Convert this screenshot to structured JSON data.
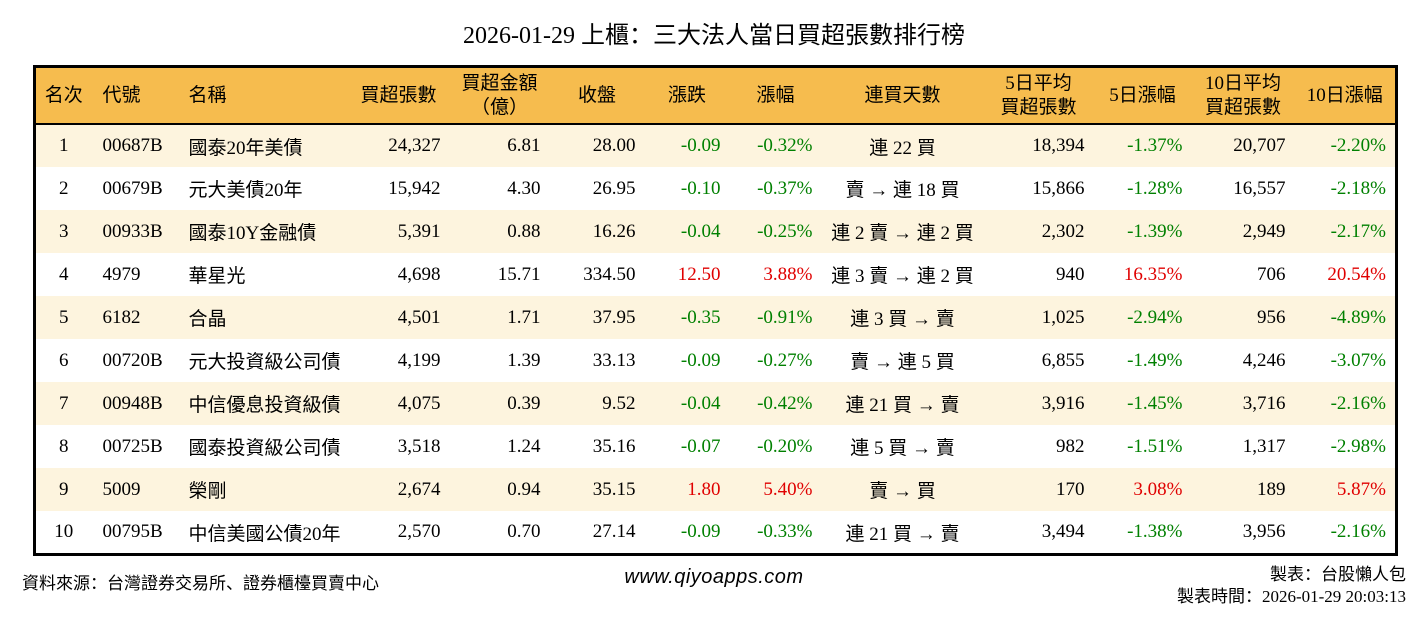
{
  "title": "2026-01-29 上櫃：三大法人當日買超張數排行榜",
  "colors": {
    "header_bg": "#F6BC4E",
    "row_alt_bg": "#FDF4DE",
    "up_red": "#E00000",
    "down_green": "#008000"
  },
  "chart_data": {
    "type": "table",
    "columns": [
      {
        "key": "rank",
        "label": "名次"
      },
      {
        "key": "code",
        "label": "代號"
      },
      {
        "key": "name",
        "label": "名稱"
      },
      {
        "key": "net_buy_lots",
        "label": "買超張數"
      },
      {
        "key": "net_buy_amount_100m",
        "label": "買超金額\n（億）"
      },
      {
        "key": "close",
        "label": "收盤"
      },
      {
        "key": "change",
        "label": "漲跌",
        "signed": true
      },
      {
        "key": "change_pct",
        "label": "漲幅",
        "signed": true
      },
      {
        "key": "streak",
        "label": "連買天數"
      },
      {
        "key": "avg5_net_buy",
        "label": "5日平均\n買超張數"
      },
      {
        "key": "pct5",
        "label": "5日漲幅",
        "signed": true
      },
      {
        "key": "avg10_net_buy",
        "label": "10日平均\n買超張數"
      },
      {
        "key": "pct10",
        "label": "10日漲幅",
        "signed": true
      }
    ],
    "rows": [
      {
        "rank": "1",
        "code": "00687B",
        "name": "國泰20年美債",
        "net_buy_lots": "24,327",
        "net_buy_amount_100m": "6.81",
        "close": "28.00",
        "change": "-0.09",
        "change_pct": "-0.32%",
        "streak": "連 22 買",
        "avg5_net_buy": "18,394",
        "pct5": "-1.37%",
        "avg10_net_buy": "20,707",
        "pct10": "-2.20%"
      },
      {
        "rank": "2",
        "code": "00679B",
        "name": "元大美債20年",
        "net_buy_lots": "15,942",
        "net_buy_amount_100m": "4.30",
        "close": "26.95",
        "change": "-0.10",
        "change_pct": "-0.37%",
        "streak": "賣 → 連 18 買",
        "avg5_net_buy": "15,866",
        "pct5": "-1.28%",
        "avg10_net_buy": "16,557",
        "pct10": "-2.18%"
      },
      {
        "rank": "3",
        "code": "00933B",
        "name": "國泰10Y金融債",
        "net_buy_lots": "5,391",
        "net_buy_amount_100m": "0.88",
        "close": "16.26",
        "change": "-0.04",
        "change_pct": "-0.25%",
        "streak": "連 2 賣 → 連 2 買",
        "avg5_net_buy": "2,302",
        "pct5": "-1.39%",
        "avg10_net_buy": "2,949",
        "pct10": "-2.17%"
      },
      {
        "rank": "4",
        "code": "4979",
        "name": "華星光",
        "net_buy_lots": "4,698",
        "net_buy_amount_100m": "15.71",
        "close": "334.50",
        "change": "12.50",
        "change_pct": "3.88%",
        "streak": "連 3 賣 → 連 2 買",
        "avg5_net_buy": "940",
        "pct5": "16.35%",
        "avg10_net_buy": "706",
        "pct10": "20.54%"
      },
      {
        "rank": "5",
        "code": "6182",
        "name": "合晶",
        "net_buy_lots": "4,501",
        "net_buy_amount_100m": "1.71",
        "close": "37.95",
        "change": "-0.35",
        "change_pct": "-0.91%",
        "streak": "連 3 買 → 賣",
        "avg5_net_buy": "1,025",
        "pct5": "-2.94%",
        "avg10_net_buy": "956",
        "pct10": "-4.89%"
      },
      {
        "rank": "6",
        "code": "00720B",
        "name": "元大投資級公司債",
        "net_buy_lots": "4,199",
        "net_buy_amount_100m": "1.39",
        "close": "33.13",
        "change": "-0.09",
        "change_pct": "-0.27%",
        "streak": "賣 → 連 5 買",
        "avg5_net_buy": "6,855",
        "pct5": "-1.49%",
        "avg10_net_buy": "4,246",
        "pct10": "-3.07%"
      },
      {
        "rank": "7",
        "code": "00948B",
        "name": "中信優息投資級債",
        "net_buy_lots": "4,075",
        "net_buy_amount_100m": "0.39",
        "close": "9.52",
        "change": "-0.04",
        "change_pct": "-0.42%",
        "streak": "連 21 買 → 賣",
        "avg5_net_buy": "3,916",
        "pct5": "-1.45%",
        "avg10_net_buy": "3,716",
        "pct10": "-2.16%"
      },
      {
        "rank": "8",
        "code": "00725B",
        "name": "國泰投資級公司債",
        "net_buy_lots": "3,518",
        "net_buy_amount_100m": "1.24",
        "close": "35.16",
        "change": "-0.07",
        "change_pct": "-0.20%",
        "streak": "連 5 買 → 賣",
        "avg5_net_buy": "982",
        "pct5": "-1.51%",
        "avg10_net_buy": "1,317",
        "pct10": "-2.98%"
      },
      {
        "rank": "9",
        "code": "5009",
        "name": "榮剛",
        "net_buy_lots": "2,674",
        "net_buy_amount_100m": "0.94",
        "close": "35.15",
        "change": "1.80",
        "change_pct": "5.40%",
        "streak": "賣 → 買",
        "avg5_net_buy": "170",
        "pct5": "3.08%",
        "avg10_net_buy": "189",
        "pct10": "5.87%"
      },
      {
        "rank": "10",
        "code": "00795B",
        "name": "中信美國公債20年",
        "net_buy_lots": "2,570",
        "net_buy_amount_100m": "0.70",
        "close": "27.14",
        "change": "-0.09",
        "change_pct": "-0.33%",
        "streak": "連 21 買 → 賣",
        "avg5_net_buy": "3,494",
        "pct5": "-1.38%",
        "avg10_net_buy": "3,956",
        "pct10": "-2.16%"
      }
    ]
  },
  "footer": {
    "source": "資料來源：台灣證券交易所、證券櫃檯買賣中心",
    "website": "www.qiyoapps.com",
    "maker": "製表：台股懶人包",
    "made_at": "製表時間：2026-01-29 20:03:13"
  }
}
